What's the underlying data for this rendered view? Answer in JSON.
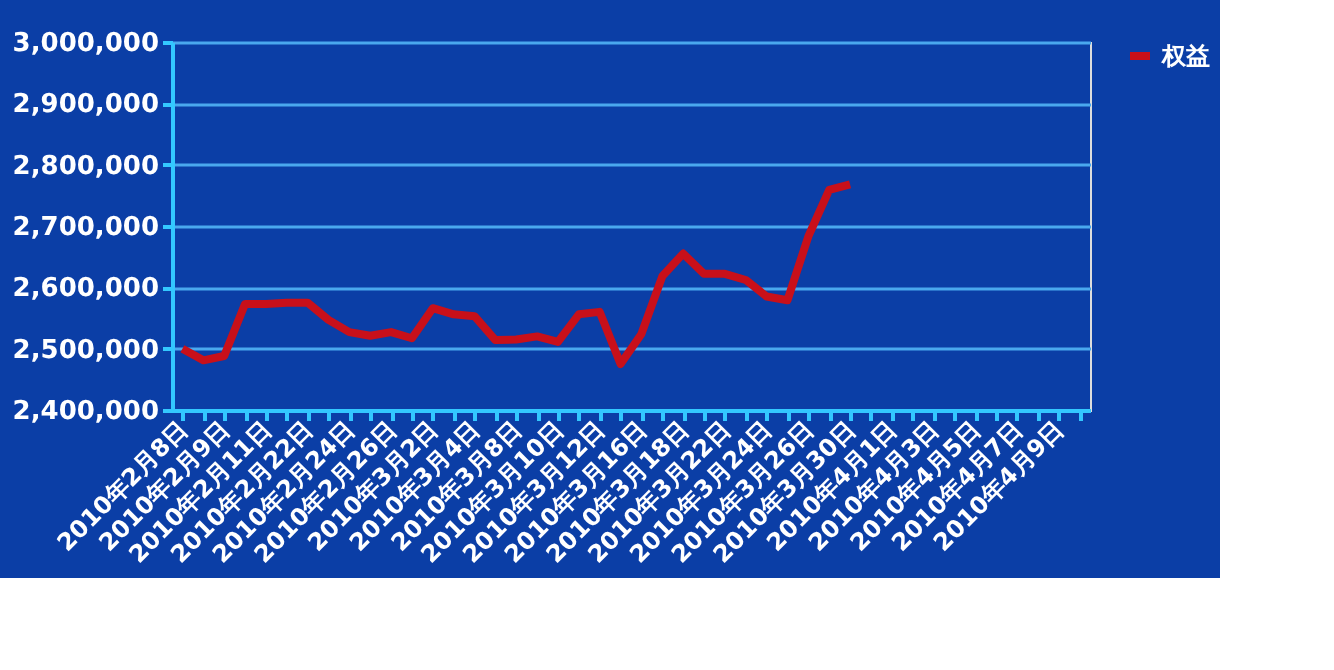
{
  "chart_data": {
    "type": "line",
    "categories": [
      "2010年2月8日",
      null,
      "2010年2月9日",
      null,
      "2010年2月11日",
      null,
      "2010年2月22日",
      null,
      "2010年2月24日",
      null,
      "2010年2月26日",
      null,
      "2010年3月2日",
      null,
      "2010年3月4日",
      null,
      "2010年3月8日",
      null,
      "2010年3月10日",
      null,
      "2010年3月12日",
      null,
      "2010年3月16日",
      null,
      "2010年3月18日",
      null,
      "2010年3月22日",
      null,
      "2010年3月24日",
      null,
      "2010年3月26日",
      null,
      "2010年3月30日",
      null,
      "2010年4月1日",
      null,
      "2010年4月3日",
      null,
      "2010年4月5日",
      null,
      "2010年4月7日",
      null,
      "2010年4月9日",
      null
    ],
    "series": [
      {
        "name": "权益",
        "color": "#c8101a",
        "values": [
          2500000,
          2481000,
          2488000,
          2573000,
          2573000,
          2575000,
          2575000,
          2547000,
          2527000,
          2521000,
          2527000,
          2517000,
          2566000,
          2556000,
          2553000,
          2514000,
          2515000,
          2520000,
          2511000,
          2556000,
          2560000,
          2475000,
          2524000,
          2618000,
          2655000,
          2622000,
          2622000,
          2612000,
          2585000,
          2579000,
          2683000,
          2759000,
          2768000,
          null,
          null,
          null,
          null,
          null,
          null,
          null,
          null,
          null,
          null,
          null
        ]
      }
    ],
    "ylim": [
      2400000,
      3000000
    ],
    "yticks": [
      {
        "value": 2400000,
        "label": "2,400,000"
      },
      {
        "value": 2500000,
        "label": "2,500,000"
      },
      {
        "value": 2600000,
        "label": "2,600,000"
      },
      {
        "value": 2700000,
        "label": "2,700,000"
      },
      {
        "value": 2800000,
        "label": "2,800,000"
      },
      {
        "value": 2900000,
        "label": "2,900,000"
      },
      {
        "value": 3000000,
        "label": "3,000,000"
      }
    ],
    "grid": "y",
    "legend": "right",
    "marker": "none",
    "line_style": "solid"
  }
}
